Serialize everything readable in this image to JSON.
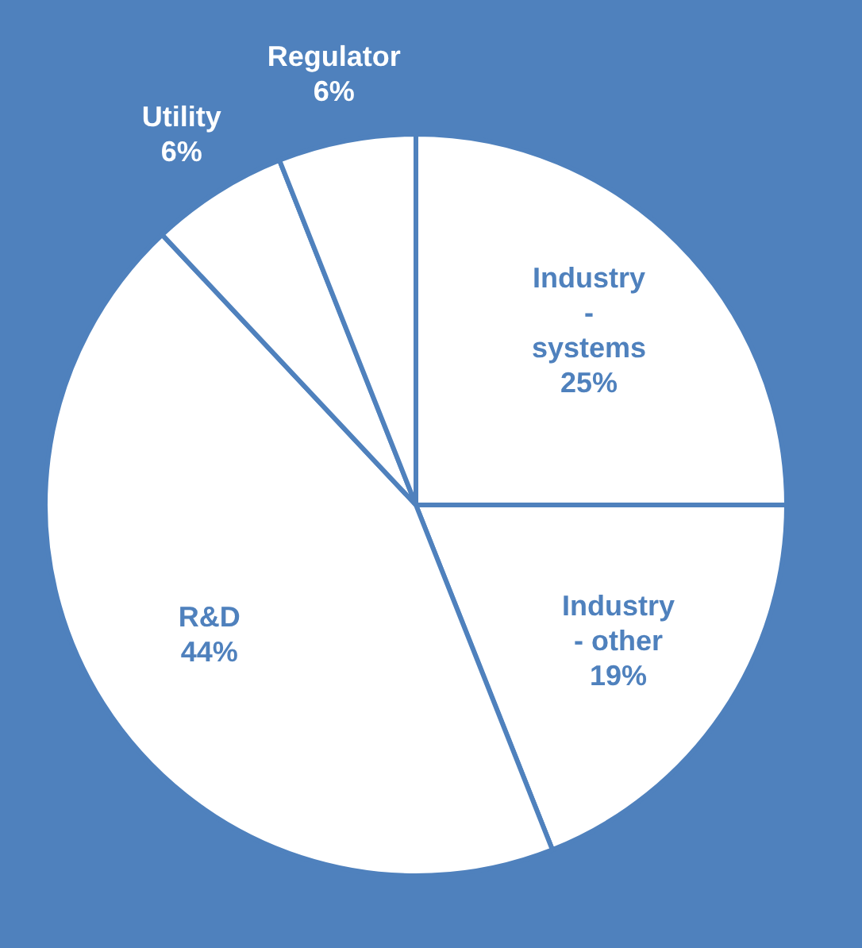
{
  "chart_data": {
    "type": "pie",
    "categories": [
      "Industry - systems",
      "Industry - other",
      "R&D",
      "Utility",
      "Regulator"
    ],
    "values": [
      25,
      19,
      44,
      6,
      6
    ],
    "value_labels": [
      "25%",
      "19%",
      "44%",
      "6%",
      "6%"
    ],
    "colors": [
      "#ffffff",
      "#ffffff",
      "#ffffff",
      "#ffffff",
      "#ffffff"
    ],
    "legend": false
  }
}
